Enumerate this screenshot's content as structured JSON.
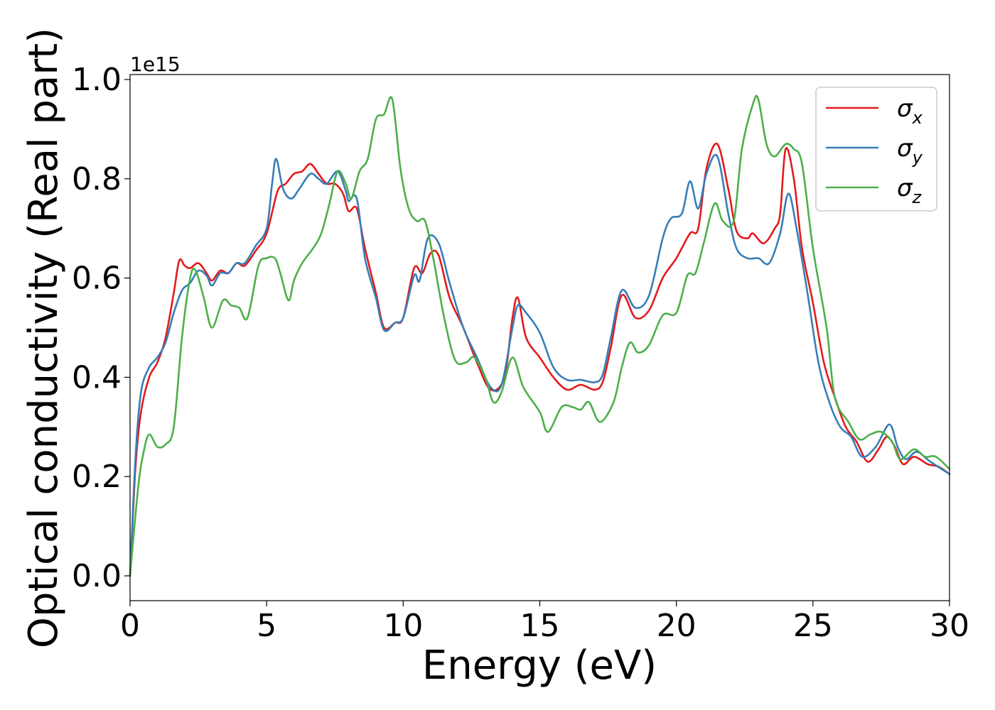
{
  "chart_data": {
    "type": "line",
    "xlabel": "Energy (eV)",
    "ylabel": "Optical conductivity (Real part)",
    "y_offset_label": "1e15",
    "xlim": [
      0,
      30
    ],
    "ylim": [
      -0.05,
      1.01
    ],
    "x_ticks": [
      0,
      5,
      10,
      15,
      20,
      25,
      30
    ],
    "x_tick_labels": [
      "0",
      "5",
      "10",
      "15",
      "20",
      "25",
      "30"
    ],
    "y_ticks": [
      0.0,
      0.2,
      0.4,
      0.6,
      0.8,
      1.0
    ],
    "y_tick_labels": [
      "0.0",
      "0.2",
      "0.4",
      "0.6",
      "0.8",
      "1.0"
    ],
    "grid": false,
    "legend_position": "top-right",
    "series": [
      {
        "name": "σx",
        "legend_base": "σ",
        "legend_sub": "x",
        "color": "#e41a1c",
        "points": [
          [
            0,
            0
          ],
          [
            0.2,
            0.22
          ],
          [
            0.4,
            0.33
          ],
          [
            0.7,
            0.4
          ],
          [
            1.0,
            0.43
          ],
          [
            1.3,
            0.48
          ],
          [
            1.6,
            0.57
          ],
          [
            1.8,
            0.635
          ],
          [
            2.0,
            0.625
          ],
          [
            2.2,
            0.62
          ],
          [
            2.5,
            0.63
          ],
          [
            2.8,
            0.61
          ],
          [
            3.0,
            0.595
          ],
          [
            3.3,
            0.615
          ],
          [
            3.6,
            0.61
          ],
          [
            3.9,
            0.63
          ],
          [
            4.2,
            0.625
          ],
          [
            4.6,
            0.655
          ],
          [
            5.0,
            0.69
          ],
          [
            5.4,
            0.775
          ],
          [
            5.7,
            0.79
          ],
          [
            6.0,
            0.81
          ],
          [
            6.3,
            0.815
          ],
          [
            6.6,
            0.83
          ],
          [
            6.9,
            0.81
          ],
          [
            7.2,
            0.79
          ],
          [
            7.5,
            0.79
          ],
          [
            7.8,
            0.77
          ],
          [
            8.0,
            0.735
          ],
          [
            8.3,
            0.74
          ],
          [
            8.6,
            0.66
          ],
          [
            9.0,
            0.57
          ],
          [
            9.3,
            0.5
          ],
          [
            9.7,
            0.51
          ],
          [
            10.0,
            0.52
          ],
          [
            10.4,
            0.62
          ],
          [
            10.7,
            0.61
          ],
          [
            11.0,
            0.65
          ],
          [
            11.3,
            0.645
          ],
          [
            11.7,
            0.56
          ],
          [
            12.2,
            0.5
          ],
          [
            12.7,
            0.43
          ],
          [
            13.2,
            0.375
          ],
          [
            13.7,
            0.4
          ],
          [
            14.0,
            0.52
          ],
          [
            14.2,
            0.56
          ],
          [
            14.5,
            0.48
          ],
          [
            15.0,
            0.44
          ],
          [
            15.5,
            0.4
          ],
          [
            16.0,
            0.375
          ],
          [
            16.5,
            0.385
          ],
          [
            17.0,
            0.375
          ],
          [
            17.3,
            0.39
          ],
          [
            17.6,
            0.46
          ],
          [
            18.0,
            0.565
          ],
          [
            18.5,
            0.52
          ],
          [
            19.0,
            0.535
          ],
          [
            19.5,
            0.6
          ],
          [
            20.0,
            0.64
          ],
          [
            20.5,
            0.69
          ],
          [
            20.8,
            0.7
          ],
          [
            21.1,
            0.82
          ],
          [
            21.5,
            0.87
          ],
          [
            21.9,
            0.78
          ],
          [
            22.2,
            0.695
          ],
          [
            22.6,
            0.68
          ],
          [
            22.8,
            0.69
          ],
          [
            23.2,
            0.67
          ],
          [
            23.6,
            0.7
          ],
          [
            23.8,
            0.73
          ],
          [
            24.0,
            0.86
          ],
          [
            24.3,
            0.8
          ],
          [
            24.6,
            0.66
          ],
          [
            25.0,
            0.55
          ],
          [
            25.4,
            0.43
          ],
          [
            25.8,
            0.36
          ],
          [
            26.2,
            0.3
          ],
          [
            26.6,
            0.27
          ],
          [
            27.0,
            0.23
          ],
          [
            27.4,
            0.255
          ],
          [
            27.7,
            0.28
          ],
          [
            28.0,
            0.26
          ],
          [
            28.3,
            0.225
          ],
          [
            28.7,
            0.24
          ],
          [
            29.2,
            0.225
          ],
          [
            29.6,
            0.22
          ],
          [
            30.0,
            0.205
          ]
        ]
      },
      {
        "name": "σy",
        "legend_base": "σ",
        "legend_sub": "y",
        "color": "#377eb8",
        "points": [
          [
            0,
            0
          ],
          [
            0.2,
            0.24
          ],
          [
            0.4,
            0.37
          ],
          [
            0.7,
            0.42
          ],
          [
            1.0,
            0.44
          ],
          [
            1.3,
            0.47
          ],
          [
            1.6,
            0.53
          ],
          [
            1.9,
            0.575
          ],
          [
            2.2,
            0.59
          ],
          [
            2.5,
            0.615
          ],
          [
            2.8,
            0.605
          ],
          [
            3.0,
            0.585
          ],
          [
            3.3,
            0.61
          ],
          [
            3.6,
            0.61
          ],
          [
            3.9,
            0.63
          ],
          [
            4.2,
            0.63
          ],
          [
            4.6,
            0.665
          ],
          [
            5.0,
            0.7
          ],
          [
            5.2,
            0.79
          ],
          [
            5.35,
            0.84
          ],
          [
            5.6,
            0.78
          ],
          [
            5.9,
            0.76
          ],
          [
            6.2,
            0.78
          ],
          [
            6.6,
            0.81
          ],
          [
            6.9,
            0.8
          ],
          [
            7.2,
            0.79
          ],
          [
            7.6,
            0.815
          ],
          [
            7.9,
            0.775
          ],
          [
            8.0,
            0.755
          ],
          [
            8.3,
            0.76
          ],
          [
            8.6,
            0.64
          ],
          [
            9.0,
            0.56
          ],
          [
            9.3,
            0.495
          ],
          [
            9.7,
            0.51
          ],
          [
            10.0,
            0.52
          ],
          [
            10.4,
            0.605
          ],
          [
            10.6,
            0.595
          ],
          [
            10.9,
            0.68
          ],
          [
            11.3,
            0.67
          ],
          [
            11.7,
            0.59
          ],
          [
            12.2,
            0.5
          ],
          [
            12.7,
            0.44
          ],
          [
            13.2,
            0.38
          ],
          [
            13.6,
            0.385
          ],
          [
            14.0,
            0.5
          ],
          [
            14.2,
            0.545
          ],
          [
            14.5,
            0.53
          ],
          [
            15.0,
            0.49
          ],
          [
            15.5,
            0.42
          ],
          [
            16.0,
            0.395
          ],
          [
            16.5,
            0.395
          ],
          [
            17.0,
            0.39
          ],
          [
            17.3,
            0.405
          ],
          [
            17.6,
            0.48
          ],
          [
            18.0,
            0.575
          ],
          [
            18.5,
            0.54
          ],
          [
            19.0,
            0.565
          ],
          [
            19.5,
            0.68
          ],
          [
            19.8,
            0.72
          ],
          [
            20.2,
            0.73
          ],
          [
            20.5,
            0.795
          ],
          [
            20.8,
            0.74
          ],
          [
            21.1,
            0.81
          ],
          [
            21.5,
            0.845
          ],
          [
            21.9,
            0.73
          ],
          [
            22.2,
            0.66
          ],
          [
            22.6,
            0.64
          ],
          [
            23.0,
            0.64
          ],
          [
            23.4,
            0.63
          ],
          [
            23.8,
            0.69
          ],
          [
            24.1,
            0.77
          ],
          [
            24.4,
            0.7
          ],
          [
            24.8,
            0.57
          ],
          [
            25.2,
            0.43
          ],
          [
            25.6,
            0.35
          ],
          [
            26.0,
            0.3
          ],
          [
            26.4,
            0.28
          ],
          [
            26.8,
            0.24
          ],
          [
            27.3,
            0.26
          ],
          [
            27.8,
            0.305
          ],
          [
            28.1,
            0.26
          ],
          [
            28.4,
            0.235
          ],
          [
            28.8,
            0.25
          ],
          [
            29.3,
            0.23
          ],
          [
            30.0,
            0.205
          ]
        ]
      },
      {
        "name": "σz",
        "legend_base": "σ",
        "legend_sub": "z",
        "color": "#4daf4a",
        "points": [
          [
            0,
            0
          ],
          [
            0.3,
            0.18
          ],
          [
            0.5,
            0.25
          ],
          [
            0.7,
            0.285
          ],
          [
            1.0,
            0.26
          ],
          [
            1.3,
            0.265
          ],
          [
            1.6,
            0.3
          ],
          [
            1.9,
            0.48
          ],
          [
            2.2,
            0.6
          ],
          [
            2.4,
            0.615
          ],
          [
            2.7,
            0.56
          ],
          [
            3.0,
            0.5
          ],
          [
            3.4,
            0.555
          ],
          [
            3.7,
            0.545
          ],
          [
            4.0,
            0.54
          ],
          [
            4.3,
            0.52
          ],
          [
            4.7,
            0.625
          ],
          [
            5.0,
            0.64
          ],
          [
            5.3,
            0.64
          ],
          [
            5.5,
            0.61
          ],
          [
            5.8,
            0.555
          ],
          [
            6.0,
            0.595
          ],
          [
            6.3,
            0.63
          ],
          [
            6.7,
            0.66
          ],
          [
            7.0,
            0.69
          ],
          [
            7.3,
            0.75
          ],
          [
            7.6,
            0.815
          ],
          [
            7.9,
            0.79
          ],
          [
            8.1,
            0.76
          ],
          [
            8.4,
            0.815
          ],
          [
            8.7,
            0.84
          ],
          [
            9.0,
            0.92
          ],
          [
            9.3,
            0.93
          ],
          [
            9.6,
            0.96
          ],
          [
            9.9,
            0.82
          ],
          [
            10.2,
            0.74
          ],
          [
            10.5,
            0.715
          ],
          [
            10.8,
            0.715
          ],
          [
            11.1,
            0.64
          ],
          [
            11.5,
            0.52
          ],
          [
            11.9,
            0.435
          ],
          [
            12.3,
            0.43
          ],
          [
            12.6,
            0.44
          ],
          [
            13.0,
            0.4
          ],
          [
            13.3,
            0.35
          ],
          [
            13.6,
            0.37
          ],
          [
            14.0,
            0.44
          ],
          [
            14.4,
            0.38
          ],
          [
            15.0,
            0.33
          ],
          [
            15.3,
            0.29
          ],
          [
            15.8,
            0.34
          ],
          [
            16.2,
            0.34
          ],
          [
            16.5,
            0.335
          ],
          [
            16.8,
            0.35
          ],
          [
            17.2,
            0.31
          ],
          [
            17.7,
            0.35
          ],
          [
            18.0,
            0.42
          ],
          [
            18.3,
            0.47
          ],
          [
            18.6,
            0.45
          ],
          [
            19.0,
            0.465
          ],
          [
            19.5,
            0.525
          ],
          [
            20.0,
            0.53
          ],
          [
            20.4,
            0.605
          ],
          [
            20.7,
            0.61
          ],
          [
            21.0,
            0.67
          ],
          [
            21.4,
            0.75
          ],
          [
            21.7,
            0.715
          ],
          [
            22.1,
            0.715
          ],
          [
            22.4,
            0.86
          ],
          [
            22.8,
            0.95
          ],
          [
            23.0,
            0.96
          ],
          [
            23.3,
            0.87
          ],
          [
            23.6,
            0.845
          ],
          [
            24.0,
            0.87
          ],
          [
            24.3,
            0.86
          ],
          [
            24.6,
            0.83
          ],
          [
            25.0,
            0.66
          ],
          [
            25.5,
            0.5
          ],
          [
            25.8,
            0.36
          ],
          [
            26.3,
            0.31
          ],
          [
            26.7,
            0.275
          ],
          [
            27.1,
            0.285
          ],
          [
            27.5,
            0.29
          ],
          [
            27.9,
            0.27
          ],
          [
            28.2,
            0.235
          ],
          [
            28.7,
            0.255
          ],
          [
            29.1,
            0.24
          ],
          [
            29.5,
            0.24
          ],
          [
            30.0,
            0.215
          ]
        ]
      }
    ]
  }
}
